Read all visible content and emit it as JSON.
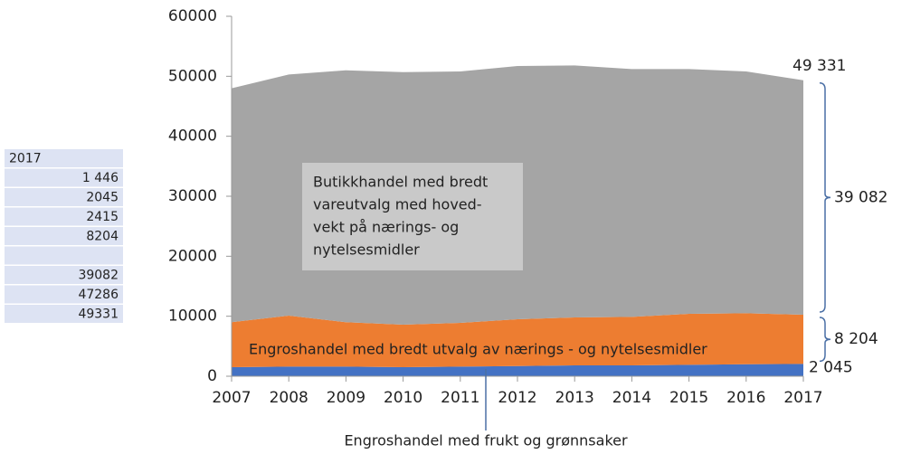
{
  "table": {
    "rows": [
      "2017",
      "1 446",
      "2045",
      "2415",
      "8204",
      null,
      "39082",
      "47286",
      "49331"
    ]
  },
  "chart_data": {
    "type": "stacked_area",
    "x": [
      2007,
      2008,
      2009,
      2010,
      2011,
      2012,
      2013,
      2014,
      2015,
      2016,
      2017
    ],
    "xlim": [
      2007,
      2017
    ],
    "xticks": [
      2007,
      2008,
      2009,
      2010,
      2011,
      2012,
      2013,
      2014,
      2015,
      2016,
      2017
    ],
    "ylim": [
      0,
      60000
    ],
    "yticks": [
      0,
      10000,
      20000,
      30000,
      40000,
      50000,
      60000
    ],
    "total_label": "49 331",
    "series": [
      {
        "name": "Engroshandel med frukt og grønnsaker",
        "color": "#4472c4",
        "end_label": "2 045",
        "values": [
          1500,
          1600,
          1600,
          1500,
          1600,
          1700,
          1800,
          1800,
          1900,
          2000,
          2045
        ]
      },
      {
        "name": "Engroshandel med bredt utvalg av nærings - og nytelsesmidler",
        "color": "#ed7d31",
        "end_label": "8 204",
        "values": [
          7500,
          8500,
          7400,
          7100,
          7300,
          7800,
          8000,
          8100,
          8500,
          8500,
          8204
        ]
      },
      {
        "name_lines": [
          "Butikkhandel med bredt",
          "vareutvalg med hoved-",
          "vekt på nærings- og",
          "nytelsesmidler"
        ],
        "color": "#a5a5a5",
        "end_label": "39 082",
        "values": [
          39000,
          40200,
          42000,
          42100,
          41900,
          42200,
          42000,
          41300,
          40800,
          40300,
          39082
        ]
      }
    ]
  }
}
